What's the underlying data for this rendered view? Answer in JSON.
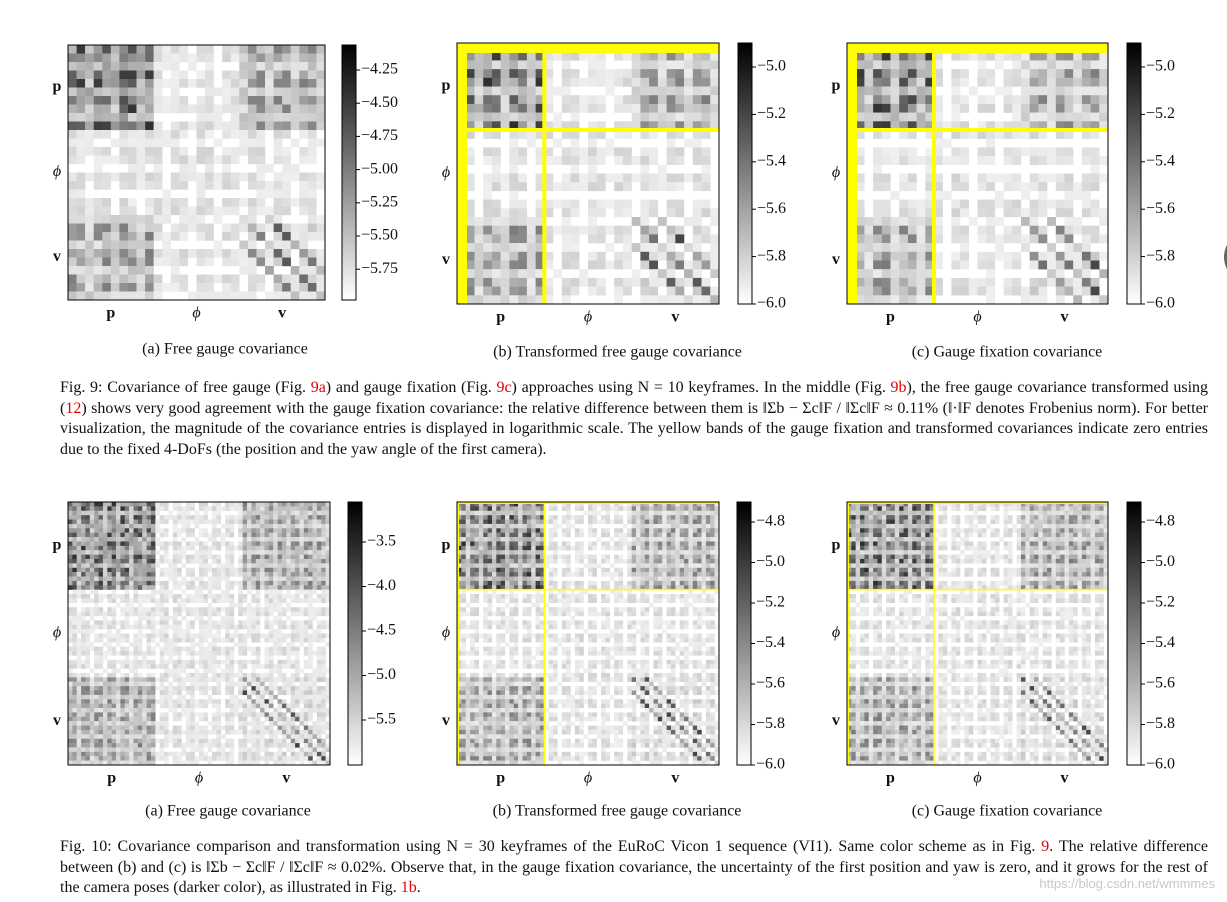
{
  "figures": [
    {
      "subfigures": [
        {
          "caption": "(a) Free gauge covariance",
          "axis_labels": [
            "p",
            "ϕ",
            "v"
          ],
          "colorbar_ticks": [
            "−4.25",
            "−4.50",
            "−4.75",
            "−5.00",
            "−5.25",
            "−5.50",
            "−5.75"
          ]
        },
        {
          "caption": "(b) Transformed free gauge covariance",
          "axis_labels": [
            "p",
            "ϕ",
            "v"
          ],
          "colorbar_ticks": [
            "−5.0",
            "−5.2",
            "−5.4",
            "−5.6",
            "−5.8",
            "−6.0"
          ]
        },
        {
          "caption": "(c) Gauge fixation covariance",
          "axis_labels": [
            "p",
            "ϕ",
            "v"
          ],
          "colorbar_ticks": [
            "−5.0",
            "−5.2",
            "−5.4",
            "−5.6",
            "−5.8",
            "−6.0"
          ]
        }
      ],
      "caption": [
        {
          "text": "Fig. 9: Covariance of free gauge (Fig. "
        },
        {
          "text": "9a",
          "color": "#e00000"
        },
        {
          "text": ") and gauge fixation (Fig. "
        },
        {
          "text": "9c",
          "color": "#e00000"
        },
        {
          "text": ") approaches using N = 10 keyframes. In the middle (Fig. "
        },
        {
          "text": "9b",
          "color": "#e00000"
        },
        {
          "text": "), the free gauge covariance transformed using ("
        },
        {
          "text": "12",
          "color": "#e00000"
        },
        {
          "text": ") shows very good agreement with the gauge fixation covariance: the relative difference between them is ‖Σb − Σc‖F / ‖Σc‖F ≈ 0.11% (‖·‖F denotes Frobenius norm). For better visualization, the magnitude of the covariance entries is displayed in logarithmic scale. The yellow bands of the gauge fixation and transformed covariances indicate zero entries due to the fixed 4-DoFs (the position and the yaw angle of the first camera)."
        }
      ]
    },
    {
      "subfigures": [
        {
          "caption": "(a) Free gauge covariance",
          "axis_labels": [
            "p",
            "ϕ",
            "v"
          ],
          "colorbar_ticks": [
            "−3.5",
            "−4.0",
            "−4.5",
            "−5.0",
            "−5.5"
          ]
        },
        {
          "caption": "(b) Transformed free gauge covariance",
          "axis_labels": [
            "p",
            "ϕ",
            "v"
          ],
          "colorbar_ticks": [
            "−4.8",
            "−5.0",
            "−5.2",
            "−5.4",
            "−5.6",
            "−5.8",
            "−6.0"
          ]
        },
        {
          "caption": "(c) Gauge fixation covariance",
          "axis_labels": [
            "p",
            "ϕ",
            "v"
          ],
          "colorbar_ticks": [
            "−4.8",
            "−5.0",
            "−5.2",
            "−5.4",
            "−5.6",
            "−5.8",
            "−6.0"
          ]
        }
      ],
      "caption": [
        {
          "text": "Fig. 10: Covariance comparison and transformation using N = 30 keyframes of the EuRoC Vicon 1 sequence (VI1). Same color scheme as in Fig. "
        },
        {
          "text": "9",
          "color": "#e00000"
        },
        {
          "text": ". The relative difference between (b) and (c) is ‖Σb − Σc‖F / ‖Σc‖F ≈ 0.02%. Observe that, in the gauge fixation covariance, the uncertainty of the first position and yaw is zero, and it grows for the rest of the camera poses (darker color), as illustrated in Fig. "
        },
        {
          "text": "1b",
          "color": "#e00000"
        },
        {
          "text": "."
        }
      ]
    }
  ],
  "watermark": "https://blog.csdn.net/wmmmes"
}
